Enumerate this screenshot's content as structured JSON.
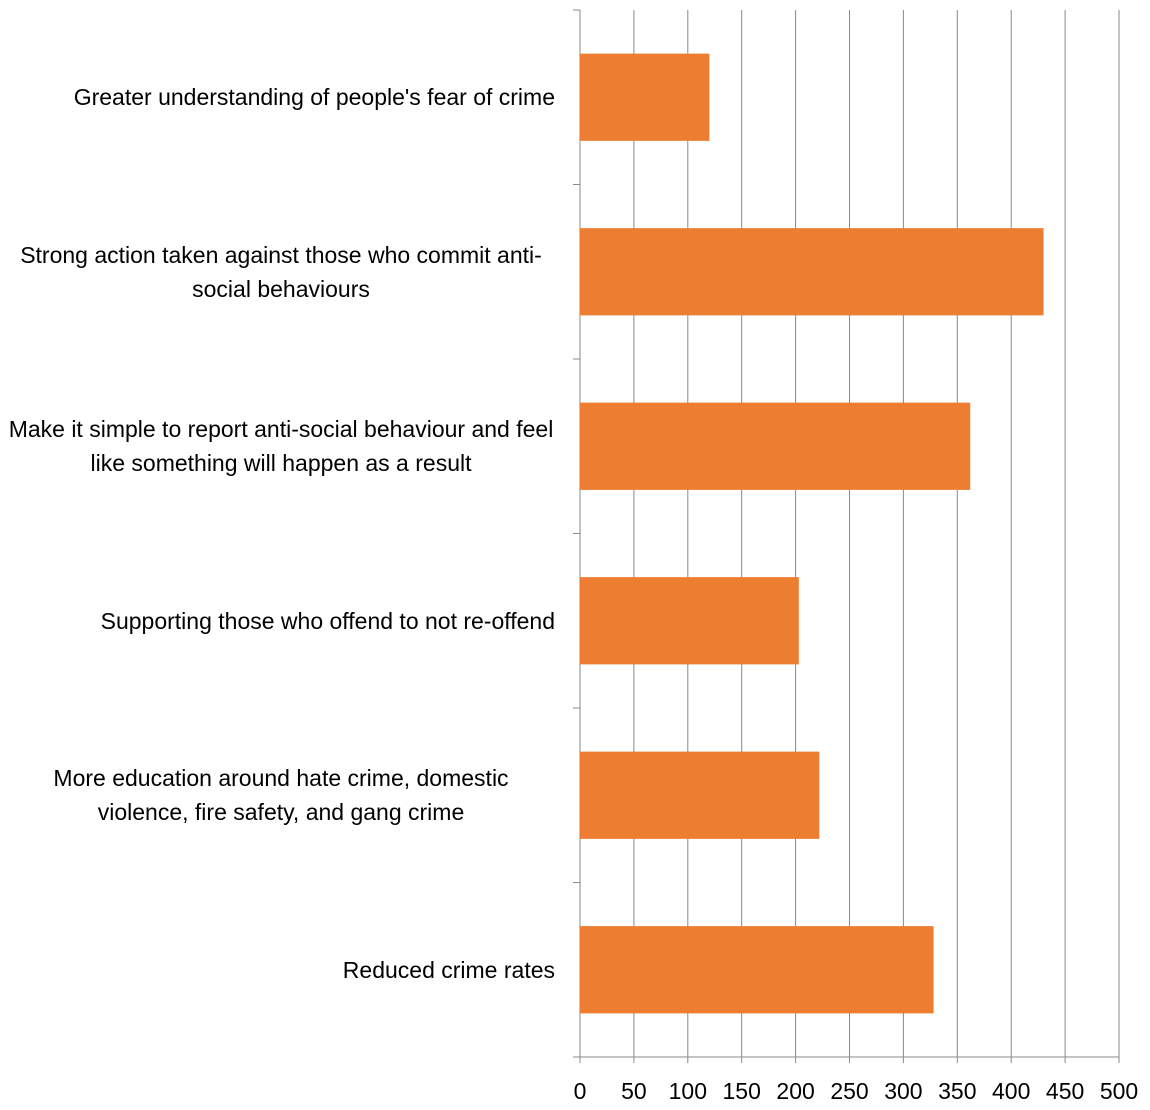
{
  "chart_data": {
    "type": "bar",
    "orientation": "horizontal",
    "categories": [
      "Greater understanding of people's fear of crime",
      "Strong action taken against those who commit anti-social behaviours",
      "Make it simple to report anti-social behaviour and feel like something will happen as a result",
      "Supporting those who offend to not re-offend",
      "More education around hate crime, domestic violence, fire safety, and gang crime",
      "Reduced crime rates"
    ],
    "values": [
      120,
      430,
      362,
      203,
      222,
      328
    ],
    "color": "#ed7d31",
    "xlim": [
      0,
      500
    ],
    "xticks": [
      0,
      50,
      100,
      150,
      200,
      250,
      300,
      350,
      400,
      450,
      500
    ],
    "grid": true
  }
}
